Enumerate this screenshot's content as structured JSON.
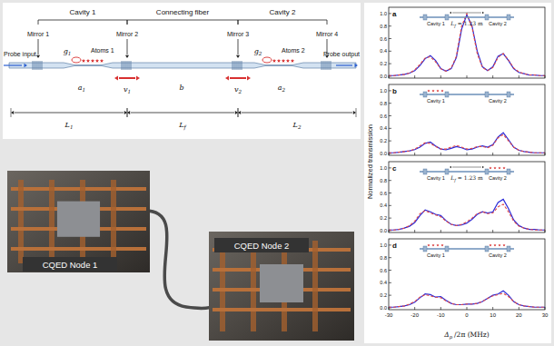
{
  "schematic": {
    "sections": [
      "Cavity 1",
      "Connecting fiber",
      "Cavity 2"
    ],
    "mirrors": [
      "Mirror 1",
      "Mirror 2",
      "Mirror 3",
      "Mirror 4"
    ],
    "couplings": [
      {
        "base": "g",
        "sub": "1"
      },
      {
        "base": "g",
        "sub": "2"
      }
    ],
    "atoms": [
      "Atoms 1",
      "Atoms 2"
    ],
    "modes": [
      {
        "base": "a",
        "sub": "1"
      },
      {
        "base": "b"
      },
      {
        "base": "a",
        "sub": "2"
      }
    ],
    "mirror_motion": [
      {
        "base": "v",
        "sub": "1"
      },
      {
        "base": "v",
        "sub": "2"
      }
    ],
    "lengths": [
      {
        "base": "L",
        "sub": "1"
      },
      {
        "base": "L",
        "sub": "f"
      },
      {
        "base": "L",
        "sub": "2"
      }
    ],
    "probe": [
      "Probe input",
      "Probe output"
    ]
  },
  "photos": [
    {
      "label": "CQED Node 1"
    },
    {
      "label": "CQED Node 2"
    }
  ],
  "axis_labels": {
    "x": {
      "base": "Δ",
      "sub": "p",
      "rest": "/2π (MHz)"
    },
    "y": "Normalized transmission"
  },
  "insets": [
    {
      "cavity_labels": [
        "Cavity 1",
        "Cavity 2"
      ],
      "atoms_in_cavity": [
        false,
        false
      ],
      "fiber_length": {
        "base": "L",
        "sub": "f",
        "rest": "= 1.23 m"
      }
    },
    {
      "cavity_labels": [
        "Cavity 1",
        "Cavity 2"
      ],
      "atoms_in_cavity": [
        true,
        false
      ]
    },
    {
      "cavity_labels": [
        "Cavity 1",
        "Cavity 2"
      ],
      "atoms_in_cavity": [
        false,
        true
      ],
      "fiber_length": {
        "base": "L",
        "sub": "f",
        "rest": "= 1.23 m"
      }
    },
    {
      "cavity_labels": [
        "Cavity 1",
        "Cavity 2"
      ],
      "atoms_in_cavity": [
        true,
        true
      ]
    }
  ],
  "chart_data": [
    {
      "type": "line",
      "title": "a",
      "tick_labels": "y",
      "x": [
        -30,
        -28,
        -26,
        -24,
        -22,
        -20,
        -18,
        -16,
        -14,
        -12,
        -10,
        -8,
        -6,
        -4,
        -2,
        0,
        2,
        4,
        6,
        8,
        10,
        12,
        14,
        16,
        18,
        20,
        22,
        24,
        26,
        28,
        30
      ],
      "series": [
        {
          "color": "#2a2ad8",
          "line_style": "solid",
          "values": [
            0.01,
            0.01,
            0.02,
            0.03,
            0.05,
            0.09,
            0.17,
            0.28,
            0.33,
            0.25,
            0.12,
            0.08,
            0.12,
            0.3,
            0.75,
            0.98,
            0.8,
            0.4,
            0.15,
            0.09,
            0.15,
            0.32,
            0.36,
            0.25,
            0.12,
            0.06,
            0.04,
            0.02,
            0.02,
            0.01,
            0.01
          ]
        },
        {
          "color": "#e04848",
          "line_style": "dashed",
          "values": [
            0.01,
            0.01,
            0.02,
            0.03,
            0.05,
            0.1,
            0.19,
            0.29,
            0.31,
            0.23,
            0.12,
            0.08,
            0.13,
            0.32,
            0.8,
            1.0,
            0.78,
            0.36,
            0.14,
            0.09,
            0.14,
            0.3,
            0.36,
            0.26,
            0.13,
            0.07,
            0.04,
            0.02,
            0.02,
            0.01,
            0.01
          ]
        }
      ],
      "xlim": [
        -30,
        30
      ],
      "xticks": [
        -30,
        -20,
        -10,
        0,
        10,
        20,
        30
      ],
      "ylim": [
        -0.03,
        1.1
      ],
      "yticks": [
        {
          "value": 0,
          "label": "0.0"
        },
        {
          "value": 0.2,
          "label": "0.2"
        },
        {
          "value": 0.4,
          "label": "0.4"
        },
        {
          "value": 0.6,
          "label": "0.6"
        },
        {
          "value": 0.8,
          "label": "0.8"
        },
        {
          "value": 1,
          "label": "1.0"
        }
      ]
    },
    {
      "type": "line",
      "title": "b",
      "tick_labels": "y",
      "x": [
        -30,
        -28,
        -26,
        -24,
        -22,
        -20,
        -18,
        -16,
        -14,
        -12,
        -10,
        -8,
        -6,
        -4,
        -2,
        0,
        2,
        4,
        6,
        8,
        10,
        12,
        14,
        16,
        18,
        20,
        22,
        24,
        26,
        28,
        30
      ],
      "series": [
        {
          "color": "#2a2ad8",
          "line_style": "solid",
          "values": [
            0.01,
            0.01,
            0.02,
            0.03,
            0.04,
            0.06,
            0.1,
            0.16,
            0.18,
            0.12,
            0.07,
            0.06,
            0.08,
            0.11,
            0.09,
            0.06,
            0.07,
            0.1,
            0.12,
            0.1,
            0.14,
            0.26,
            0.33,
            0.22,
            0.1,
            0.05,
            0.03,
            0.02,
            0.01,
            0.01,
            0.01
          ]
        },
        {
          "color": "#e04848",
          "line_style": "dashed",
          "values": [
            0.01,
            0.01,
            0.02,
            0.03,
            0.04,
            0.07,
            0.12,
            0.17,
            0.16,
            0.11,
            0.07,
            0.07,
            0.1,
            0.13,
            0.1,
            0.07,
            0.08,
            0.11,
            0.11,
            0.09,
            0.13,
            0.25,
            0.3,
            0.2,
            0.1,
            0.05,
            0.03,
            0.02,
            0.01,
            0.01,
            0.01
          ]
        }
      ],
      "xlim": [
        -30,
        30
      ],
      "xticks": [
        -30,
        -20,
        -10,
        0,
        10,
        20,
        30
      ],
      "ylim": [
        -0.03,
        1.1
      ],
      "yticks": [
        {
          "value": 0,
          "label": "0.0"
        },
        {
          "value": 0.2,
          "label": "0.2"
        },
        {
          "value": 0.4,
          "label": "0.4"
        },
        {
          "value": 0.6,
          "label": "0.6"
        },
        {
          "value": 0.8,
          "label": "0.8"
        },
        {
          "value": 1,
          "label": "1.0"
        }
      ]
    },
    {
      "type": "line",
      "title": "c",
      "tick_labels": "y",
      "x": [
        -30,
        -28,
        -26,
        -24,
        -22,
        -20,
        -18,
        -16,
        -14,
        -12,
        -10,
        -8,
        -6,
        -4,
        -2,
        0,
        2,
        4,
        6,
        8,
        10,
        12,
        14,
        16,
        18,
        20,
        22,
        24,
        26,
        28,
        30
      ],
      "series": [
        {
          "color": "#2a2ad8",
          "line_style": "solid",
          "values": [
            0.01,
            0.01,
            0.02,
            0.04,
            0.07,
            0.13,
            0.24,
            0.33,
            0.3,
            0.26,
            0.24,
            0.16,
            0.1,
            0.08,
            0.09,
            0.12,
            0.18,
            0.26,
            0.3,
            0.28,
            0.3,
            0.45,
            0.5,
            0.35,
            0.17,
            0.08,
            0.04,
            0.02,
            0.02,
            0.01,
            0.01
          ]
        },
        {
          "color": "#e04848",
          "line_style": "dashed",
          "values": [
            0.01,
            0.01,
            0.02,
            0.04,
            0.08,
            0.15,
            0.27,
            0.32,
            0.28,
            0.25,
            0.22,
            0.15,
            0.1,
            0.08,
            0.1,
            0.14,
            0.2,
            0.27,
            0.3,
            0.27,
            0.28,
            0.38,
            0.42,
            0.3,
            0.15,
            0.07,
            0.04,
            0.02,
            0.01,
            0.01,
            0.01
          ]
        }
      ],
      "xlim": [
        -30,
        30
      ],
      "xticks": [
        -30,
        -20,
        -10,
        0,
        10,
        20,
        30
      ],
      "ylim": [
        -0.03,
        1.1
      ],
      "yticks": [
        {
          "value": 0,
          "label": "0.0"
        },
        {
          "value": 0.2,
          "label": "0.2"
        },
        {
          "value": 0.4,
          "label": "0.4"
        },
        {
          "value": 0.6,
          "label": "0.6"
        },
        {
          "value": 0.8,
          "label": "0.8"
        },
        {
          "value": 1,
          "label": "1.0"
        }
      ]
    },
    {
      "type": "line",
      "title": "d",
      "x": [
        -30,
        -28,
        -26,
        -24,
        -22,
        -20,
        -18,
        -16,
        -14,
        -12,
        -10,
        -8,
        -6,
        -4,
        -2,
        0,
        2,
        4,
        6,
        8,
        10,
        12,
        14,
        16,
        18,
        20,
        22,
        24,
        26,
        28,
        30
      ],
      "series": [
        {
          "color": "#2a2ad8",
          "line_style": "solid",
          "values": [
            0.01,
            0.01,
            0.02,
            0.03,
            0.05,
            0.09,
            0.16,
            0.22,
            0.21,
            0.17,
            0.18,
            0.12,
            0.07,
            0.05,
            0.05,
            0.06,
            0.06,
            0.07,
            0.1,
            0.15,
            0.2,
            0.22,
            0.27,
            0.2,
            0.1,
            0.05,
            0.03,
            0.02,
            0.01,
            0.01,
            0.01
          ]
        },
        {
          "color": "#e04848",
          "line_style": "dashed",
          "values": [
            0.01,
            0.01,
            0.02,
            0.03,
            0.06,
            0.1,
            0.17,
            0.21,
            0.19,
            0.17,
            0.16,
            0.11,
            0.07,
            0.05,
            0.05,
            0.06,
            0.06,
            0.07,
            0.1,
            0.15,
            0.19,
            0.21,
            0.23,
            0.18,
            0.1,
            0.05,
            0.03,
            0.02,
            0.01,
            0.01,
            0.01
          ]
        }
      ],
      "xlim": [
        -30,
        30
      ],
      "xticks": [
        -30,
        -20,
        -10,
        0,
        10,
        20,
        30
      ],
      "ylim": [
        -0.03,
        1.1
      ],
      "yticks": [
        {
          "value": 0,
          "label": "0.0"
        },
        {
          "value": 0.2,
          "label": "0.2"
        },
        {
          "value": 0.4,
          "label": "0.4"
        },
        {
          "value": 0.6,
          "label": "0.6"
        },
        {
          "value": 0.8,
          "label": "0.8"
        },
        {
          "value": 1,
          "label": "1.0"
        }
      ]
    }
  ]
}
